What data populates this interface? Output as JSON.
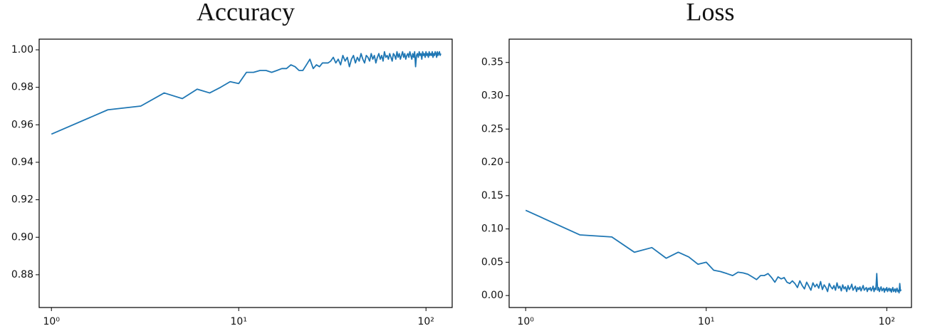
{
  "chart_data": [
    {
      "type": "line",
      "title": "Accuracy",
      "xscale": "log",
      "color": "#1f77b4",
      "xlim": [
        0.86,
        138
      ],
      "xticks": [
        {
          "value": 1,
          "label": "10⁰"
        },
        {
          "value": 10,
          "label": "10¹"
        },
        {
          "value": 100,
          "label": "10²"
        }
      ],
      "ylim": [
        0.8625,
        1.0057
      ],
      "yticks": [
        {
          "value": 0.88,
          "label": "0.88"
        },
        {
          "value": 0.9,
          "label": "0.90"
        },
        {
          "value": 0.92,
          "label": "0.92"
        },
        {
          "value": 0.94,
          "label": "0.94"
        },
        {
          "value": 0.96,
          "label": "0.96"
        },
        {
          "value": 0.98,
          "label": "0.98"
        },
        {
          "value": 1.0,
          "label": "1.00"
        }
      ],
      "x": [
        1,
        2,
        3,
        4,
        5,
        6,
        7,
        8,
        9,
        10,
        11,
        12,
        13,
        14,
        15,
        16,
        17,
        18,
        19,
        20,
        21,
        22,
        23,
        24,
        25,
        26,
        27,
        28,
        29,
        30,
        31,
        32,
        33,
        34,
        35,
        36,
        37,
        38,
        39,
        40,
        41,
        42,
        43,
        44,
        45,
        46,
        47,
        48,
        49,
        50,
        51,
        52,
        53,
        54,
        55,
        56,
        57,
        58,
        59,
        60,
        61,
        62,
        63,
        64,
        65,
        66,
        67,
        68,
        69,
        70,
        71,
        72,
        73,
        74,
        75,
        76,
        77,
        78,
        79,
        80,
        81,
        82,
        83,
        84,
        85,
        86,
        87,
        88,
        89,
        90,
        91,
        92,
        93,
        94,
        95,
        96,
        97,
        98,
        99,
        100,
        101,
        102,
        103,
        104,
        105,
        106,
        107,
        108,
        109,
        110,
        111,
        112,
        113,
        114,
        115,
        116,
        117,
        118,
        119,
        120
      ],
      "values": [
        0.955,
        0.968,
        0.97,
        0.977,
        0.974,
        0.979,
        0.977,
        0.98,
        0.983,
        0.982,
        0.988,
        0.988,
        0.989,
        0.989,
        0.988,
        0.989,
        0.99,
        0.99,
        0.992,
        0.991,
        0.989,
        0.989,
        0.992,
        0.995,
        0.99,
        0.992,
        0.991,
        0.993,
        0.993,
        0.993,
        0.994,
        0.996,
        0.993,
        0.995,
        0.992,
        0.997,
        0.994,
        0.996,
        0.991,
        0.995,
        0.997,
        0.993,
        0.996,
        0.994,
        0.998,
        0.995,
        0.993,
        0.997,
        0.996,
        0.994,
        0.998,
        0.995,
        0.997,
        0.993,
        0.996,
        0.998,
        0.995,
        0.997,
        0.994,
        0.999,
        0.996,
        0.997,
        0.995,
        0.998,
        0.996,
        0.994,
        0.998,
        0.997,
        0.995,
        0.999,
        0.996,
        0.998,
        0.995,
        0.997,
        0.999,
        0.996,
        0.998,
        0.995,
        0.997,
        0.998,
        0.996,
        0.999,
        0.997,
        0.995,
        0.998,
        0.996,
        0.999,
        0.991,
        0.997,
        0.998,
        0.996,
        0.999,
        0.997,
        0.998,
        0.995,
        0.999,
        0.997,
        0.998,
        0.996,
        0.999,
        0.997,
        0.998,
        0.996,
        0.999,
        0.997,
        0.998,
        0.997,
        0.999,
        0.996,
        0.998,
        0.997,
        0.999,
        0.998,
        0.996,
        0.999,
        0.997,
        0.998,
        0.999,
        0.997,
        0.998
      ]
    },
    {
      "type": "line",
      "title": "Loss",
      "xscale": "log",
      "color": "#1f77b4",
      "xlim": [
        0.81,
        137
      ],
      "xticks": [
        {
          "value": 1,
          "label": "10⁰"
        },
        {
          "value": 10,
          "label": "10¹"
        },
        {
          "value": 100,
          "label": "10²"
        }
      ],
      "ylim": [
        -0.018,
        0.385
      ],
      "yticks": [
        {
          "value": 0,
          "label": "0.00"
        },
        {
          "value": 0.05,
          "label": "0.05"
        },
        {
          "value": 0.1,
          "label": "0.10"
        },
        {
          "value": 0.15,
          "label": "0.15"
        },
        {
          "value": 0.2,
          "label": "0.20"
        },
        {
          "value": 0.25,
          "label": "0.25"
        },
        {
          "value": 0.3,
          "label": "0.30"
        },
        {
          "value": 0.35,
          "label": "0.35"
        }
      ],
      "x": [
        1,
        2,
        3,
        4,
        5,
        6,
        7,
        8,
        9,
        10,
        11,
        12,
        13,
        14,
        15,
        16,
        17,
        18,
        19,
        20,
        21,
        22,
        23,
        24,
        25,
        26,
        27,
        28,
        29,
        30,
        31,
        32,
        33,
        34,
        35,
        36,
        37,
        38,
        39,
        40,
        41,
        42,
        43,
        44,
        45,
        46,
        47,
        48,
        49,
        50,
        51,
        52,
        53,
        54,
        55,
        56,
        57,
        58,
        59,
        60,
        61,
        62,
        63,
        64,
        65,
        66,
        67,
        68,
        69,
        70,
        71,
        72,
        73,
        74,
        75,
        76,
        77,
        78,
        79,
        80,
        81,
        82,
        83,
        84,
        85,
        86,
        87,
        88,
        89,
        90,
        91,
        92,
        93,
        94,
        95,
        96,
        97,
        98,
        99,
        100,
        101,
        102,
        103,
        104,
        105,
        106,
        107,
        108,
        109,
        110,
        111,
        112,
        113,
        114,
        115,
        116,
        117,
        118,
        119,
        120
      ],
      "values": [
        0.128,
        0.091,
        0.088,
        0.065,
        0.072,
        0.056,
        0.065,
        0.058,
        0.047,
        0.05,
        0.038,
        0.036,
        0.033,
        0.03,
        0.035,
        0.034,
        0.032,
        0.028,
        0.024,
        0.03,
        0.03,
        0.033,
        0.027,
        0.02,
        0.028,
        0.025,
        0.027,
        0.02,
        0.018,
        0.022,
        0.018,
        0.012,
        0.022,
        0.015,
        0.01,
        0.02,
        0.014,
        0.008,
        0.019,
        0.013,
        0.017,
        0.011,
        0.021,
        0.009,
        0.016,
        0.012,
        0.006,
        0.018,
        0.013,
        0.01,
        0.015,
        0.008,
        0.019,
        0.011,
        0.014,
        0.007,
        0.016,
        0.01,
        0.013,
        0.006,
        0.015,
        0.009,
        0.012,
        0.017,
        0.008,
        0.011,
        0.014,
        0.006,
        0.012,
        0.009,
        0.013,
        0.007,
        0.011,
        0.015,
        0.008,
        0.01,
        0.012,
        0.006,
        0.011,
        0.009,
        0.012,
        0.007,
        0.01,
        0.014,
        0.006,
        0.011,
        0.009,
        0.033,
        0.008,
        0.012,
        0.006,
        0.01,
        0.013,
        0.007,
        0.009,
        0.011,
        0.005,
        0.01,
        0.008,
        0.012,
        0.006,
        0.009,
        0.011,
        0.007,
        0.01,
        0.005,
        0.009,
        0.012,
        0.006,
        0.008,
        0.01,
        0.005,
        0.009,
        0.011,
        0.006,
        0.008,
        0.004,
        0.018,
        0.007,
        0.009
      ]
    }
  ]
}
